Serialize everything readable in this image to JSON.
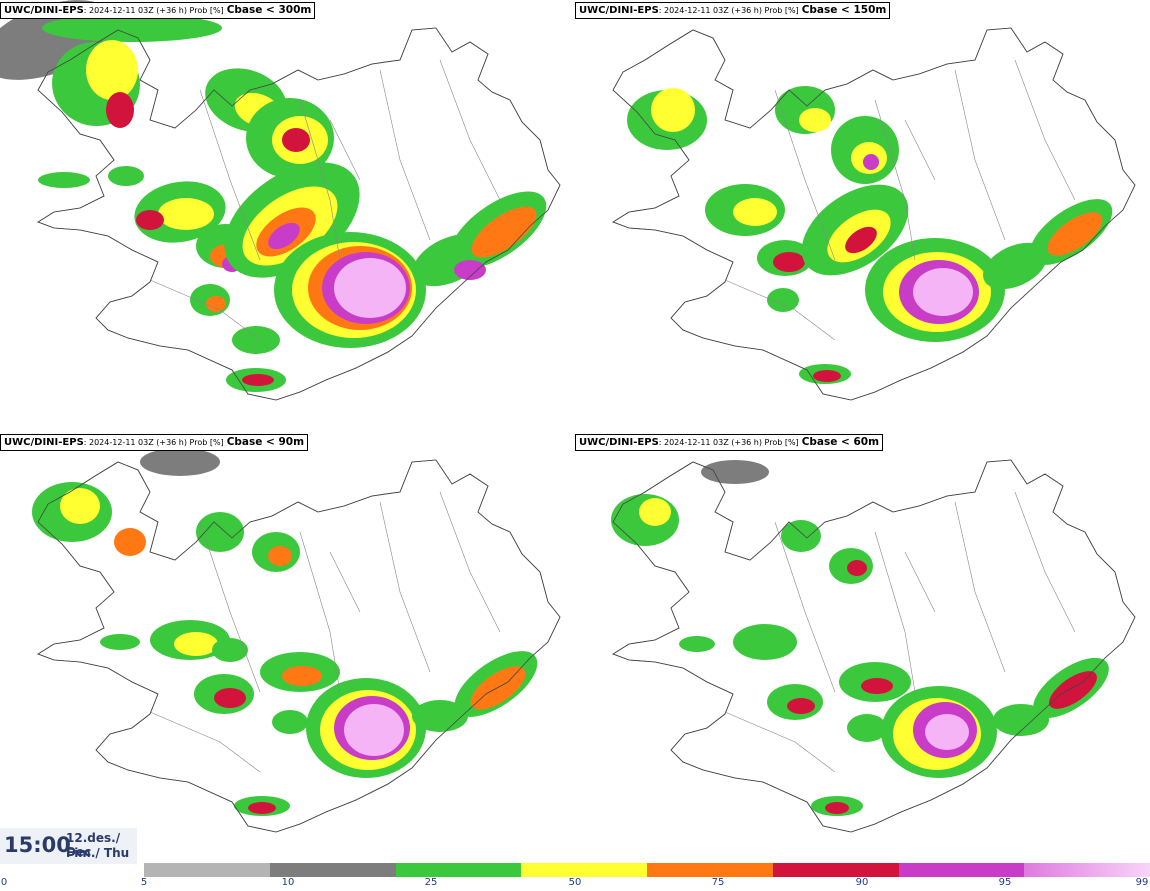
{
  "panels": [
    {
      "source": "UWC/DINI-EPS",
      "meta": ": 2024-12-11 03Z (+36 h) Prob [%]",
      "threshold": "Cbase < 300m"
    },
    {
      "source": "UWC/DINI-EPS",
      "meta": ": 2024-12-11 03Z (+36 h) Prob [%]",
      "threshold": "Cbase < 150m"
    },
    {
      "source": "UWC/DINI-EPS",
      "meta": ": 2024-12-11 03Z (+36 h) Prob [%]",
      "threshold": "Cbase < 90m"
    },
    {
      "source": "UWC/DINI-EPS",
      "meta": ": 2024-12-11 03Z (+36 h) Prob [%]",
      "threshold": "Cbase < 60m"
    }
  ],
  "valid_time": {
    "time": "15:00",
    "date": "12.des./ Dec",
    "day": "Fim./ Thu"
  },
  "legend": {
    "ticks": [
      "0",
      "5",
      "10",
      "25",
      "50",
      "75",
      "90",
      "95",
      "99"
    ],
    "colors": [
      "#b4b4b4",
      "#7d7d7d",
      "#3cc83c",
      "#ffff32",
      "#ff7814",
      "#d2143c",
      "#c83cc8",
      "#f5b4f5"
    ]
  }
}
